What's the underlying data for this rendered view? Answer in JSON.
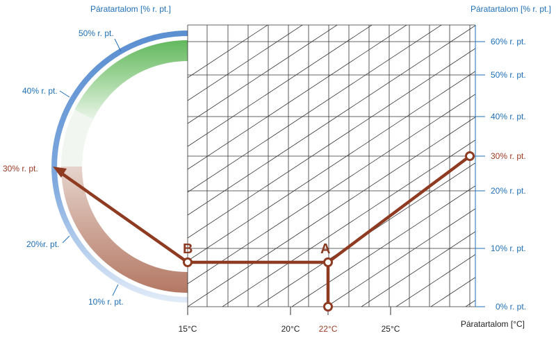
{
  "header": {
    "left_title": "Páratartalom [% r. pt.]",
    "right_title": "Páratartalom [% r. pt.]"
  },
  "dial": {
    "labels": {
      "p50": "50% r. pt.",
      "p40": "40% r. pt.",
      "p30": "30% r. pt.",
      "p20": "20%r. pt.",
      "p10": "10% r. pt."
    },
    "colors": {
      "outer_ring": "#6a9ad6",
      "green": "#6fc16b",
      "brown": "#b57b6a",
      "arrow": "#8e3b22"
    }
  },
  "right_axis": {
    "ticks": [
      "60% r. pt.",
      "50% r. pt.",
      "40% r. pt.",
      "30% r. pt.",
      "20% r. pt.",
      "10% r. pt.",
      "0% r. pt."
    ],
    "highlight": "30% r. pt."
  },
  "x_axis": {
    "ticks": [
      "15°C",
      "20°C",
      "22°C",
      "25°C"
    ],
    "highlight": "22°C",
    "label": "Páratartalom [°C]"
  },
  "points": {
    "a": "A",
    "b": "B"
  }
}
